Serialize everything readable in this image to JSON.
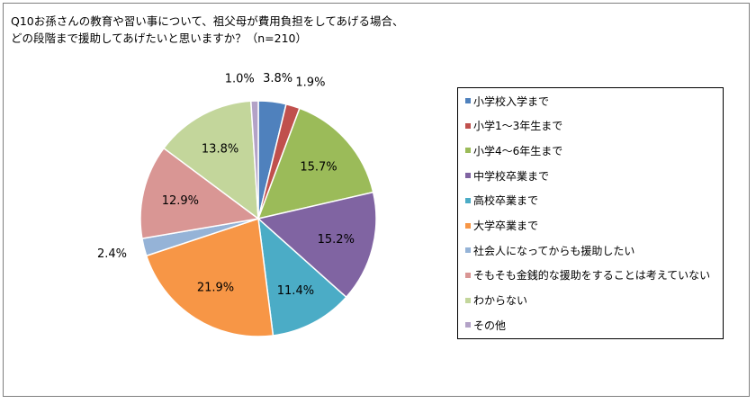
{
  "title": {
    "line1": "Q10お孫さんの教育や習い事について、祖父母が費用負担をしてあげる場合、",
    "line2": "どの段階まで援助してあげたいと思いますか？（n=210）"
  },
  "chart_data": {
    "type": "pie",
    "title": "Q10お孫さんの教育や習い事について、祖父母が費用負担をしてあげる場合、どの段階まで援助してあげたいと思いますか？（n=210）",
    "categories": [
      "小学校入学まで",
      "小学1～3年生まで",
      "小学4～6年生まで",
      "中学校卒業まで",
      "高校卒業まで",
      "大学卒業まで",
      "社会人になってからも援助したい",
      "そもそも金銭的な援助をすることは考えていない",
      "わからない",
      "その他"
    ],
    "values": [
      3.8,
      1.9,
      15.7,
      15.2,
      11.4,
      21.9,
      2.4,
      12.9,
      13.8,
      1.0
    ],
    "labels": [
      "3.8%",
      "1.9%",
      "15.7%",
      "15.2%",
      "11.4%",
      "21.9%",
      "2.4%",
      "12.9%",
      "13.8%",
      "1.0%"
    ],
    "colors": [
      "#4F81BD",
      "#C0504D",
      "#9BBB59",
      "#8064A2",
      "#4BACC6",
      "#F79646",
      "#95B3D7",
      "#D99694",
      "#C3D69B",
      "#B3A2C7"
    ],
    "legend": "right"
  }
}
